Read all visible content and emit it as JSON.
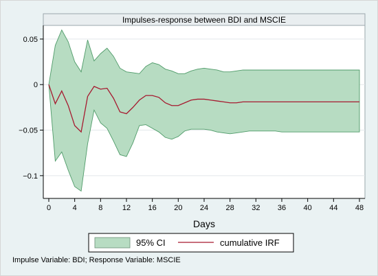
{
  "chart_data": {
    "type": "area",
    "title": "Impulses-response between BDI and MSCIE",
    "xlabel": "Days",
    "ylabel": "",
    "xlim": [
      0,
      48
    ],
    "ylim": [
      -0.125,
      0.065
    ],
    "xticks": [
      0,
      4,
      8,
      12,
      16,
      20,
      24,
      28,
      32,
      36,
      40,
      44,
      48
    ],
    "yticks": [
      {
        "value": 0.05,
        "label": "0.05"
      },
      {
        "value": 0,
        "label": "0"
      },
      {
        "value": -0.05,
        "label": "−0.05"
      },
      {
        "value": -0.1,
        "label": "−0.1"
      }
    ],
    "grid": "horizontal",
    "legend_position": "bottom",
    "x": [
      0,
      1,
      2,
      3,
      4,
      5,
      6,
      7,
      8,
      9,
      10,
      11,
      12,
      13,
      14,
      15,
      16,
      17,
      18,
      19,
      20,
      21,
      22,
      23,
      24,
      25,
      26,
      27,
      28,
      29,
      30,
      31,
      32,
      33,
      34,
      35,
      36,
      37,
      38,
      39,
      40,
      41,
      42,
      43,
      44,
      45,
      46,
      47,
      48
    ],
    "series": [
      {
        "name": "95% CI",
        "kind": "band",
        "color": "#b7dcc2",
        "upper": [
          0,
          0.043,
          0.06,
          0.047,
          0.025,
          0.014,
          0.049,
          0.026,
          0.034,
          0.04,
          0.031,
          0.018,
          0.014,
          0.013,
          0.012,
          0.02,
          0.024,
          0.022,
          0.017,
          0.015,
          0.012,
          0.012,
          0.015,
          0.017,
          0.018,
          0.017,
          0.016,
          0.014,
          0.014,
          0.015,
          0.016,
          0.016,
          0.016,
          0.016,
          0.016,
          0.016,
          0.016,
          0.016,
          0.016,
          0.016,
          0.016,
          0.016,
          0.016,
          0.016,
          0.016,
          0.016,
          0.016,
          0.016,
          0.016
        ],
        "lower": [
          0,
          -0.084,
          -0.074,
          -0.094,
          -0.112,
          -0.117,
          -0.065,
          -0.028,
          -0.042,
          -0.048,
          -0.062,
          -0.077,
          -0.079,
          -0.064,
          -0.045,
          -0.044,
          -0.048,
          -0.052,
          -0.058,
          -0.06,
          -0.057,
          -0.051,
          -0.049,
          -0.049,
          -0.049,
          -0.05,
          -0.052,
          -0.053,
          -0.054,
          -0.053,
          -0.052,
          -0.051,
          -0.051,
          -0.051,
          -0.051,
          -0.051,
          -0.052,
          -0.052,
          -0.052,
          -0.052,
          -0.052,
          -0.052,
          -0.052,
          -0.052,
          -0.052,
          -0.052,
          -0.052,
          -0.052,
          -0.052
        ]
      },
      {
        "name": "cumulative IRF",
        "kind": "line",
        "color": "#a6182e",
        "values": [
          0,
          -0.021,
          -0.007,
          -0.023,
          -0.045,
          -0.052,
          -0.013,
          -0.002,
          -0.005,
          -0.004,
          -0.015,
          -0.03,
          -0.032,
          -0.025,
          -0.017,
          -0.012,
          -0.012,
          -0.014,
          -0.02,
          -0.023,
          -0.023,
          -0.02,
          -0.017,
          -0.016,
          -0.016,
          -0.017,
          -0.018,
          -0.019,
          -0.02,
          -0.02,
          -0.019,
          -0.019,
          -0.019,
          -0.019,
          -0.019,
          -0.019,
          -0.019,
          -0.019,
          -0.019,
          -0.019,
          -0.019,
          -0.019,
          -0.019,
          -0.019,
          -0.019,
          -0.019,
          -0.019,
          -0.019,
          -0.019
        ]
      }
    ],
    "note": "Impulse Variable: BDI; Response Variable: MSCIE"
  }
}
